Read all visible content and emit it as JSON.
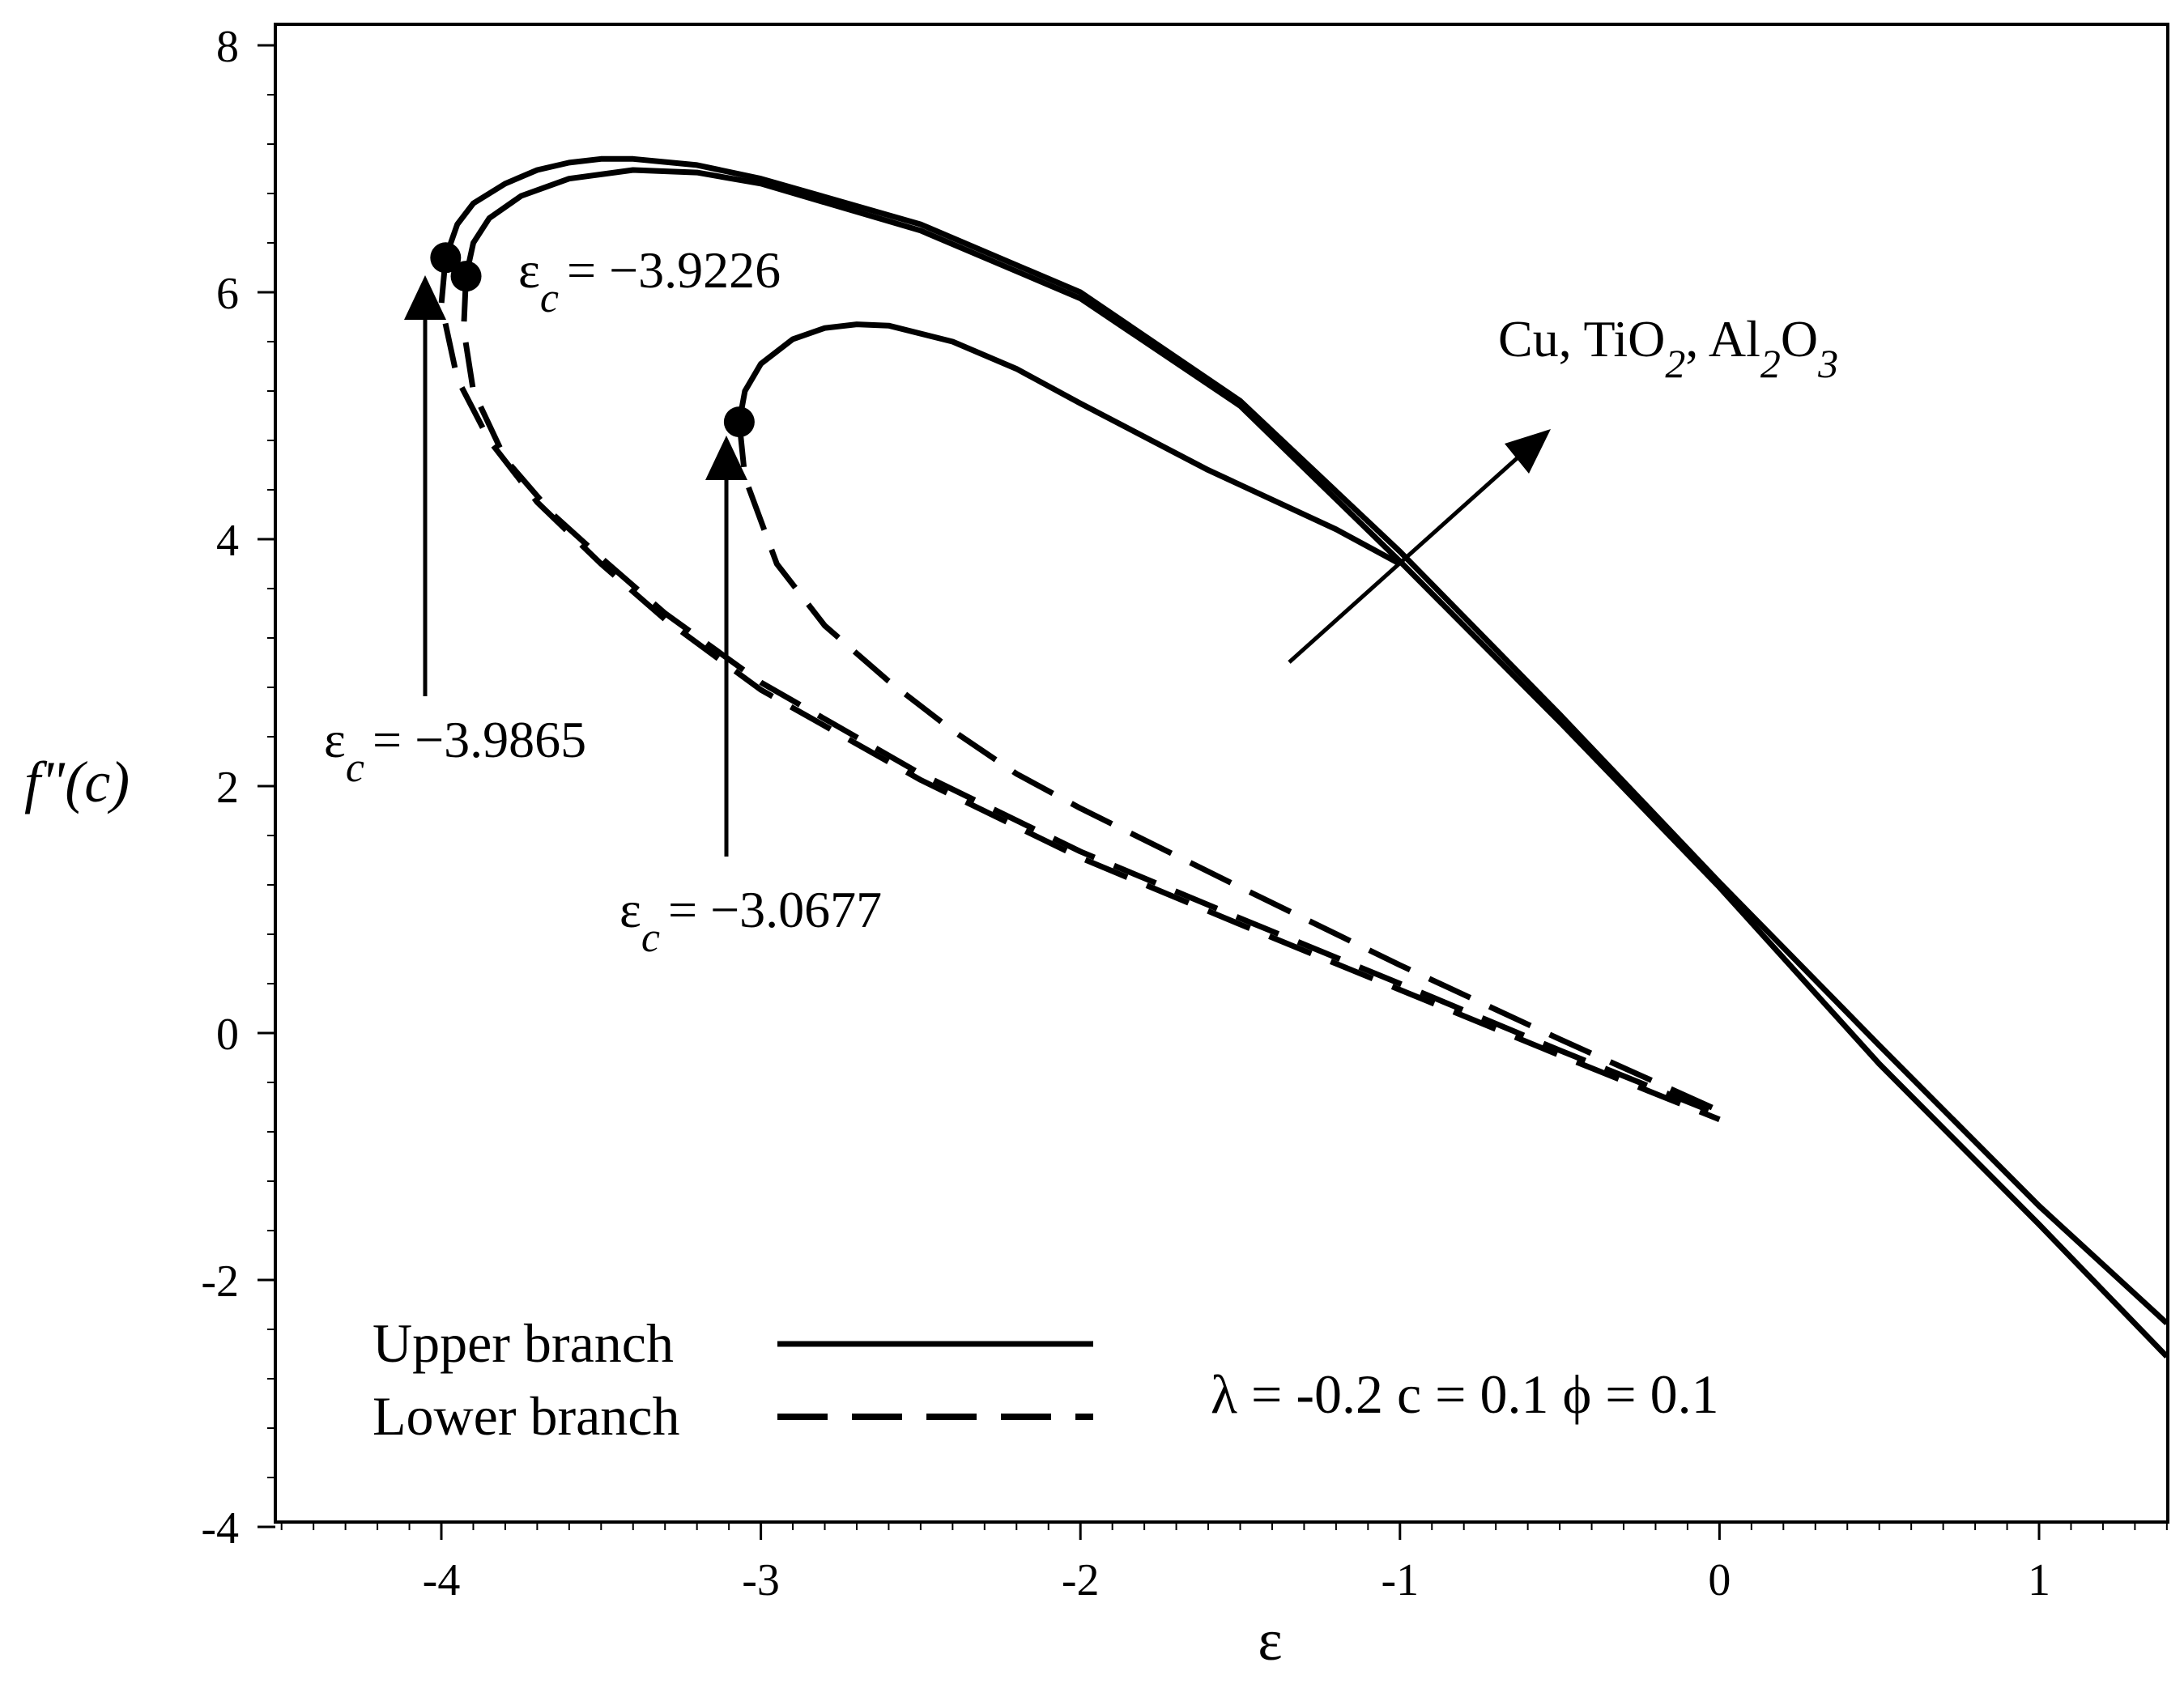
{
  "chart_data": {
    "type": "line",
    "xlabel": "ε",
    "ylabel": "f\"(c)",
    "xlim": [
      -4.5,
      1.4
    ],
    "ylim": [
      -4,
      8
    ],
    "x_ticks": [
      -4,
      -3,
      -2,
      -1,
      0,
      1
    ],
    "y_ticks": [
      -4,
      -2,
      0,
      2,
      4,
      6,
      8
    ],
    "grid": false,
    "legend": {
      "placement": "bottom-left",
      "entries": [
        {
          "label": "Upper branch",
          "style": "solid"
        },
        {
          "label": "Lower branch",
          "style": "dashed"
        }
      ]
    },
    "parameters_text": "λ = -0.2   c = 0.1   ϕ = 0.1",
    "arrow_label": {
      "main": "Cu, TiO",
      "sub1": "2",
      "mid": ", Al",
      "sub2": "2",
      "mid2": "O",
      "sub3": "3"
    },
    "critical_points": [
      {
        "eps": "ε",
        "sub": "c",
        "value_text": "= −3.9865",
        "x": -3.9865,
        "y": 6.28
      },
      {
        "eps": "ε",
        "sub": "c",
        "value_text": "= −3.9226",
        "x": -3.9226,
        "y": 6.13
      },
      {
        "eps": "ε",
        "sub": "c",
        "value_text": "= −3.0677",
        "x": -3.0677,
        "y": 4.95
      }
    ],
    "series": [
      {
        "branch": "upper",
        "style": "solid",
        "points": [
          [
            -3.9865,
            6.28
          ],
          [
            -3.95,
            6.55
          ],
          [
            -3.9,
            6.72
          ],
          [
            -3.8,
            6.88
          ],
          [
            -3.7,
            6.99
          ],
          [
            -3.6,
            7.05
          ],
          [
            -3.5,
            7.08
          ],
          [
            -3.4,
            7.08
          ],
          [
            -3.2,
            7.03
          ],
          [
            -3.0,
            6.92
          ],
          [
            -2.5,
            6.55
          ],
          [
            -2.0,
            6.0
          ],
          [
            -1.5,
            5.12
          ],
          [
            -1.0,
            3.9
          ],
          [
            -0.5,
            2.58
          ],
          [
            0.0,
            1.22
          ],
          [
            0.5,
            -0.1
          ],
          [
            1.0,
            -1.4
          ],
          [
            1.4,
            -2.35
          ]
        ]
      },
      {
        "branch": "upper",
        "style": "solid",
        "points": [
          [
            -3.9226,
            6.13
          ],
          [
            -3.9,
            6.4
          ],
          [
            -3.85,
            6.6
          ],
          [
            -3.75,
            6.78
          ],
          [
            -3.6,
            6.92
          ],
          [
            -3.4,
            6.99
          ],
          [
            -3.2,
            6.97
          ],
          [
            -3.0,
            6.88
          ],
          [
            -2.5,
            6.5
          ],
          [
            -2.0,
            5.95
          ],
          [
            -1.5,
            5.08
          ],
          [
            -1.0,
            3.82
          ],
          [
            -0.5,
            2.52
          ],
          [
            0.0,
            1.18
          ],
          [
            0.5,
            -0.25
          ],
          [
            1.0,
            -1.55
          ],
          [
            1.4,
            -2.62
          ]
        ]
      },
      {
        "branch": "upper",
        "style": "solid",
        "points": [
          [
            -3.0677,
            4.95
          ],
          [
            -3.05,
            5.2
          ],
          [
            -3.0,
            5.42
          ],
          [
            -2.9,
            5.62
          ],
          [
            -2.8,
            5.71
          ],
          [
            -2.7,
            5.74
          ],
          [
            -2.6,
            5.73
          ],
          [
            -2.4,
            5.6
          ],
          [
            -2.2,
            5.38
          ],
          [
            -2.0,
            5.1
          ],
          [
            -1.6,
            4.56
          ],
          [
            -1.2,
            4.08
          ],
          [
            -1.0,
            3.8
          ]
        ]
      },
      {
        "branch": "lower",
        "style": "dashed",
        "points": [
          [
            -3.9865,
            6.28
          ],
          [
            -4.0,
            5.9
          ],
          [
            -3.95,
            5.3
          ],
          [
            -3.85,
            4.8
          ],
          [
            -3.7,
            4.3
          ],
          [
            -3.5,
            3.8
          ],
          [
            -3.3,
            3.35
          ],
          [
            -3.0,
            2.78
          ],
          [
            -2.5,
            2.05
          ],
          [
            -2.0,
            1.42
          ],
          [
            -1.5,
            0.88
          ],
          [
            -1.0,
            0.35
          ],
          [
            -0.5,
            -0.18
          ],
          [
            0.0,
            -0.7
          ]
        ]
      },
      {
        "branch": "lower",
        "style": "dashed",
        "points": [
          [
            -3.9226,
            6.13
          ],
          [
            -3.93,
            5.7
          ],
          [
            -3.9,
            5.2
          ],
          [
            -3.8,
            4.65
          ],
          [
            -3.65,
            4.2
          ],
          [
            -3.5,
            3.85
          ],
          [
            -3.3,
            3.4
          ],
          [
            -3.0,
            2.84
          ],
          [
            -2.5,
            2.1
          ],
          [
            -2.0,
            1.47
          ],
          [
            -1.5,
            0.93
          ],
          [
            -1.0,
            0.4
          ],
          [
            -0.5,
            -0.14
          ],
          [
            0.0,
            -0.66
          ]
        ]
      },
      {
        "branch": "lower",
        "style": "dashed",
        "points": [
          [
            -3.0677,
            4.95
          ],
          [
            -3.05,
            4.5
          ],
          [
            -2.95,
            3.8
          ],
          [
            -2.8,
            3.3
          ],
          [
            -2.6,
            2.85
          ],
          [
            -2.4,
            2.45
          ],
          [
            -2.2,
            2.1
          ],
          [
            -2.0,
            1.82
          ],
          [
            -1.5,
            1.18
          ],
          [
            -1.0,
            0.55
          ],
          [
            -0.5,
            -0.05
          ],
          [
            0.0,
            -0.63
          ]
        ]
      }
    ]
  }
}
